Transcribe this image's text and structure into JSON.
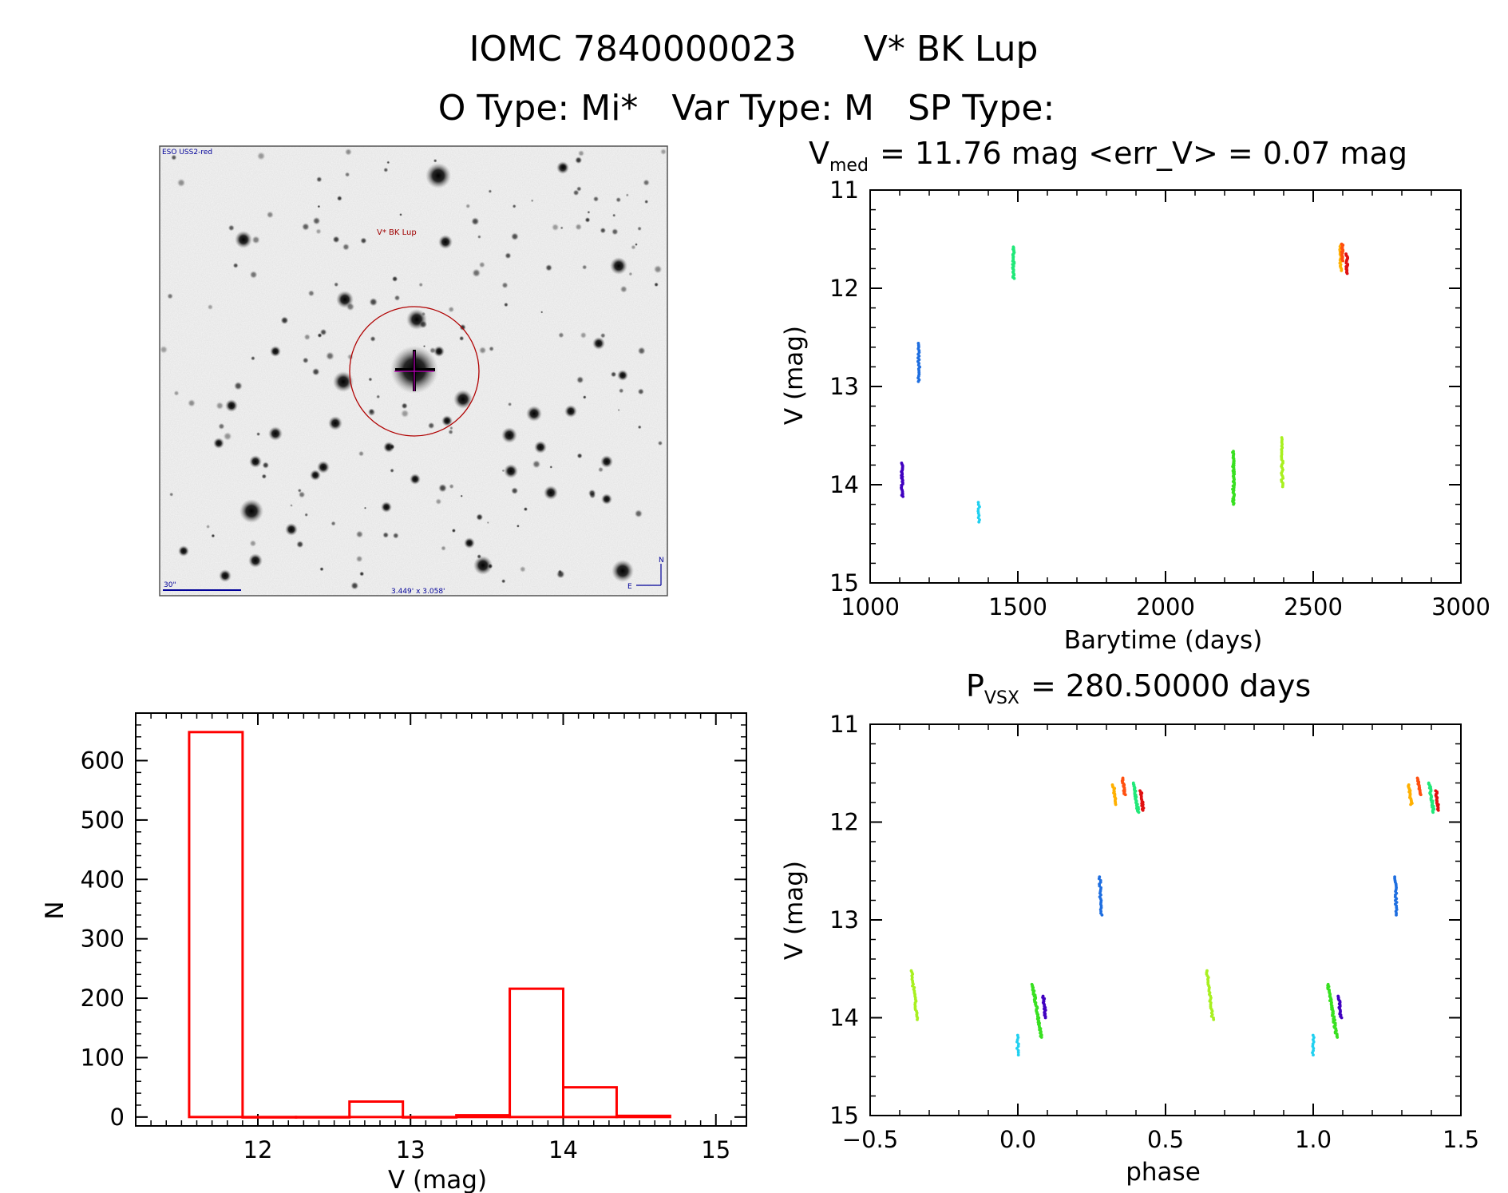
{
  "header": {
    "title_id": "IOMC 7840000023",
    "title_name": "V* BK Lup",
    "otype_label": "O Type:",
    "otype_value": "Mi*",
    "vartype_label": "Var Type:",
    "vartype_value": "M",
    "sptype_label": "SP Type:",
    "sptype_value": ""
  },
  "finder": {
    "survey_label": "ESO USS2-red",
    "target_label": "V* BK Lup",
    "scale_label": "30\"",
    "fov_label": "3.449' x 3.058'",
    "north_label": "N",
    "east_label": "E"
  },
  "colors": {
    "histogram": "#ff0000",
    "axes": "#000000",
    "circle": "#b00000"
  },
  "chart_data": [
    {
      "id": "lightcurve",
      "type": "scatter",
      "title_prefix": "V",
      "title_sub": "med",
      "title_rest": "= 11.76 mag <err_V> = 0.07 mag",
      "xlabel": "Barytime (days)",
      "ylabel": "V (mag)",
      "xlim": [
        1000,
        3000
      ],
      "ylim": [
        15,
        11
      ],
      "xticks": [
        "1000",
        "1500",
        "2000",
        "2500",
        "3000"
      ],
      "yticks": [
        "11",
        "12",
        "13",
        "14",
        "15"
      ],
      "clusters": [
        {
          "color": "#4000c0",
          "x": 1108,
          "y_min": 13.78,
          "y_max": 14.12,
          "n": 28
        },
        {
          "color": "#1e6ee0",
          "x": 1165,
          "y_min": 12.56,
          "y_max": 12.95,
          "n": 22
        },
        {
          "color": "#20d0f0",
          "x": 1368,
          "y_min": 14.18,
          "y_max": 14.38,
          "n": 10
        },
        {
          "color": "#20e878",
          "x": 1485,
          "y_min": 11.58,
          "y_max": 11.9,
          "n": 30
        },
        {
          "color": "#38e020",
          "x": 2230,
          "y_min": 13.66,
          "y_max": 14.2,
          "n": 50
        },
        {
          "color": "#a8f020",
          "x": 2395,
          "y_min": 13.52,
          "y_max": 14.02,
          "n": 30
        },
        {
          "color": "#ffb000",
          "x": 2593,
          "y_min": 11.56,
          "y_max": 11.82,
          "n": 18
        },
        {
          "color": "#ff5010",
          "x": 2598,
          "y_min": 11.55,
          "y_max": 11.72,
          "n": 18
        },
        {
          "color": "#e01010",
          "x": 2614,
          "y_min": 11.65,
          "y_max": 11.85,
          "n": 18
        }
      ]
    },
    {
      "id": "histogram",
      "type": "bar",
      "xlabel": "V (mag)",
      "ylabel": "N",
      "xlim": [
        11.2,
        15.2
      ],
      "ylim": [
        -15,
        680
      ],
      "xticks": [
        "12",
        "13",
        "14",
        "15"
      ],
      "yticks": [
        "0",
        "100",
        "200",
        "300",
        "400",
        "500",
        "600"
      ],
      "bins": [
        {
          "x0": 11.55,
          "x1": 11.9,
          "n": 648
        },
        {
          "x0": 11.9,
          "x1": 12.25,
          "n": 0
        },
        {
          "x0": 12.25,
          "x1": 12.6,
          "n": 0
        },
        {
          "x0": 12.6,
          "x1": 12.95,
          "n": 26
        },
        {
          "x0": 12.95,
          "x1": 13.3,
          "n": 0
        },
        {
          "x0": 13.3,
          "x1": 13.65,
          "n": 3
        },
        {
          "x0": 13.65,
          "x1": 14.0,
          "n": 216
        },
        {
          "x0": 14.0,
          "x1": 14.35,
          "n": 50
        },
        {
          "x0": 14.35,
          "x1": 14.7,
          "n": 2
        }
      ]
    },
    {
      "id": "phased",
      "type": "scatter",
      "title_prefix": "P",
      "title_sub": "VSX",
      "title_rest": "= 280.50000 days",
      "xlabel": "phase",
      "ylabel": "V (mag)",
      "xlim": [
        -0.5,
        1.5
      ],
      "ylim": [
        15,
        11
      ],
      "xticks": [
        "−0.5",
        "0.0",
        "0.5",
        "1.0",
        "1.5"
      ],
      "yticks": [
        "11",
        "12",
        "13",
        "14",
        "15"
      ],
      "clusters": [
        {
          "color": "#a8f020",
          "x": -0.35,
          "y_min": 13.52,
          "y_max": 14.02,
          "n": 30,
          "dx": 0.02
        },
        {
          "color": "#20d0f0",
          "x": 0.0,
          "y_min": 14.18,
          "y_max": 14.38,
          "n": 10,
          "dx": 0.0
        },
        {
          "color": "#38e020",
          "x": 0.065,
          "y_min": 13.66,
          "y_max": 14.2,
          "n": 50,
          "dx": 0.03
        },
        {
          "color": "#4000c0",
          "x": 0.09,
          "y_min": 13.78,
          "y_max": 14.0,
          "n": 18,
          "dx": 0.008
        },
        {
          "color": "#1e6ee0",
          "x": 0.28,
          "y_min": 12.56,
          "y_max": 12.95,
          "n": 22,
          "dx": 0.004
        },
        {
          "color": "#ffb000",
          "x": 0.328,
          "y_min": 11.62,
          "y_max": 11.82,
          "n": 18,
          "dx": 0.01
        },
        {
          "color": "#ff5010",
          "x": 0.358,
          "y_min": 11.55,
          "y_max": 11.72,
          "n": 18,
          "dx": 0.01
        },
        {
          "color": "#20e878",
          "x": 0.4,
          "y_min": 11.6,
          "y_max": 11.9,
          "n": 30,
          "dx": 0.015
        },
        {
          "color": "#e01010",
          "x": 0.42,
          "y_min": 11.68,
          "y_max": 11.88,
          "n": 18,
          "dx": 0.008
        },
        {
          "color": "#a8f020",
          "x": 0.65,
          "y_min": 13.52,
          "y_max": 14.02,
          "n": 30,
          "dx": 0.02
        },
        {
          "color": "#20d0f0",
          "x": 1.0,
          "y_min": 14.18,
          "y_max": 14.38,
          "n": 10,
          "dx": 0.0
        },
        {
          "color": "#38e020",
          "x": 1.065,
          "y_min": 13.66,
          "y_max": 14.2,
          "n": 50,
          "dx": 0.03
        },
        {
          "color": "#4000c0",
          "x": 1.09,
          "y_min": 13.78,
          "y_max": 14.0,
          "n": 18,
          "dx": 0.008
        },
        {
          "color": "#1e6ee0",
          "x": 1.28,
          "y_min": 12.56,
          "y_max": 12.95,
          "n": 22,
          "dx": 0.004
        },
        {
          "color": "#ffb000",
          "x": 1.328,
          "y_min": 11.62,
          "y_max": 11.82,
          "n": 18,
          "dx": 0.01
        },
        {
          "color": "#ff5010",
          "x": 1.358,
          "y_min": 11.55,
          "y_max": 11.72,
          "n": 18,
          "dx": 0.01
        },
        {
          "color": "#20e878",
          "x": 1.4,
          "y_min": 11.6,
          "y_max": 11.9,
          "n": 30,
          "dx": 0.015
        },
        {
          "color": "#e01010",
          "x": 1.42,
          "y_min": 11.68,
          "y_max": 11.88,
          "n": 18,
          "dx": 0.008
        }
      ]
    }
  ]
}
